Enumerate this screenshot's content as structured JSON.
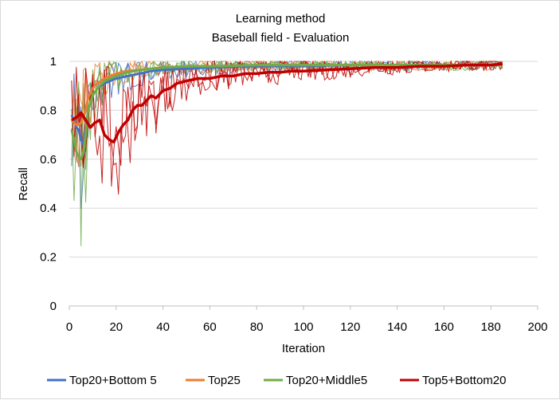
{
  "chart_data": {
    "type": "line",
    "title": [
      "Learning method",
      "Baseball field - Evaluation"
    ],
    "xlabel": "Iteration",
    "ylabel": "Recall",
    "xlim": [
      0,
      200
    ],
    "ylim": [
      0,
      1
    ],
    "xticks": [
      0,
      20,
      40,
      60,
      80,
      100,
      120,
      140,
      160,
      180,
      200
    ],
    "yticks": [
      0,
      0.2,
      0.4,
      0.6,
      0.8,
      1
    ],
    "grid": "horizontal",
    "legend_position": "bottom",
    "colors": {
      "Top20+Bottom 5": "#4472c4",
      "Top25": "#ed7d31",
      "Top20+Middle5": "#70ad47",
      "Top5+Bottom20": "#c00000"
    },
    "series": [
      {
        "name": "Top20+Bottom 5",
        "x": [
          1,
          2,
          3,
          4,
          5,
          6,
          7,
          8,
          10,
          12,
          15,
          20,
          25,
          30,
          35,
          40,
          50,
          60,
          80,
          100,
          120,
          140,
          160,
          185
        ],
        "values": [
          0.78,
          0.76,
          0.73,
          0.72,
          0.68,
          0.66,
          0.72,
          0.8,
          0.86,
          0.89,
          0.91,
          0.93,
          0.94,
          0.95,
          0.96,
          0.965,
          0.97,
          0.975,
          0.98,
          0.98,
          0.985,
          0.985,
          0.985,
          0.985
        ]
      },
      {
        "name": "Top25",
        "x": [
          1,
          2,
          3,
          4,
          5,
          6,
          7,
          8,
          10,
          12,
          15,
          20,
          25,
          30,
          35,
          40,
          50,
          60,
          80,
          100,
          120,
          140,
          160,
          185
        ],
        "values": [
          0.76,
          0.75,
          0.74,
          0.74,
          0.75,
          0.77,
          0.8,
          0.85,
          0.89,
          0.91,
          0.93,
          0.95,
          0.96,
          0.965,
          0.97,
          0.975,
          0.98,
          0.98,
          0.985,
          0.985,
          0.985,
          0.985,
          0.985,
          0.985
        ]
      },
      {
        "name": "Top20+Middle5",
        "x": [
          1,
          2,
          3,
          4,
          5,
          6,
          7,
          8,
          10,
          12,
          15,
          20,
          25,
          30,
          35,
          40,
          50,
          60,
          80,
          100,
          120,
          140,
          160,
          185
        ],
        "values": [
          0.72,
          0.68,
          0.63,
          0.61,
          0.6,
          0.63,
          0.7,
          0.8,
          0.86,
          0.89,
          0.92,
          0.94,
          0.955,
          0.965,
          0.97,
          0.975,
          0.98,
          0.98,
          0.985,
          0.985,
          0.985,
          0.985,
          0.985,
          0.985
        ]
      },
      {
        "name": "Top5+Bottom20",
        "x": [
          1,
          3,
          5,
          7,
          9,
          11,
          13,
          15,
          17,
          19,
          21,
          23,
          25,
          27,
          29,
          31,
          33,
          35,
          37,
          40,
          43,
          46,
          50,
          55,
          60,
          65,
          70,
          75,
          80,
          85,
          90,
          95,
          100,
          110,
          120,
          130,
          140,
          150,
          160,
          170,
          180,
          185
        ],
        "values": [
          0.76,
          0.77,
          0.79,
          0.76,
          0.73,
          0.75,
          0.76,
          0.7,
          0.68,
          0.67,
          0.71,
          0.74,
          0.76,
          0.8,
          0.82,
          0.82,
          0.84,
          0.86,
          0.85,
          0.88,
          0.89,
          0.91,
          0.92,
          0.93,
          0.93,
          0.94,
          0.94,
          0.95,
          0.95,
          0.955,
          0.955,
          0.96,
          0.96,
          0.965,
          0.97,
          0.975,
          0.975,
          0.98,
          0.98,
          0.985,
          0.985,
          0.99
        ]
      }
    ]
  }
}
